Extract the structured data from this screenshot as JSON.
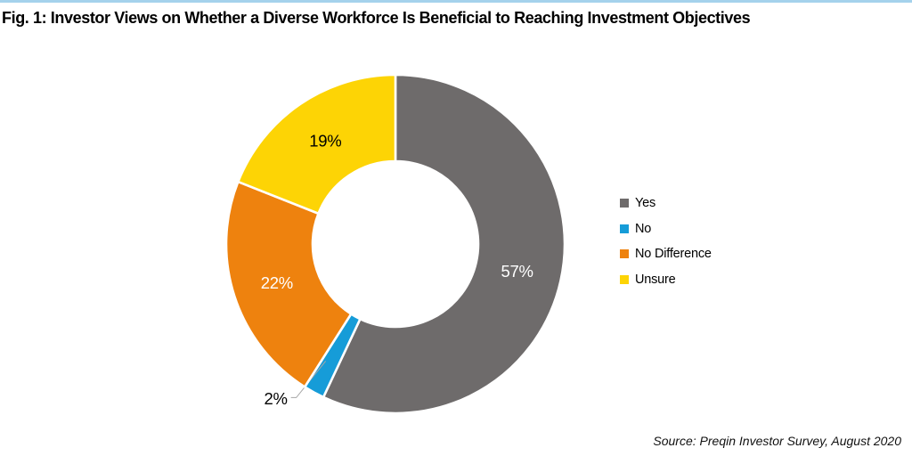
{
  "header": {
    "title": "Fig. 1: Investor Views on Whether a Diverse Workforce Is Beneficial to Reaching Investment Objectives"
  },
  "footer": {
    "source": "Source: Preqin Investor Survey, August 2020"
  },
  "colors": {
    "top_accent": "#a5d2ec",
    "leader_line": "#a6a6a6",
    "slice_border": "#ffffff"
  },
  "chart_data": {
    "type": "pie",
    "subtype": "donut",
    "title": "Fig. 1: Investor Views on Whether a Diverse Workforce Is Beneficial to Reaching Investment Objectives",
    "legend_position": "right",
    "start_angle_deg": 0,
    "direction": "clockwise",
    "slices": [
      {
        "label": "Yes",
        "value": 57,
        "display": "57%",
        "color": "#6e6b6b",
        "label_color": "#ffffff",
        "label_position": "inside"
      },
      {
        "label": "No",
        "value": 2,
        "display": "2%",
        "color": "#169cd8",
        "label_color": "#000000",
        "label_position": "outside"
      },
      {
        "label": "No Difference",
        "value": 22,
        "display": "22%",
        "color": "#ee820e",
        "label_color": "#ffffff",
        "label_position": "inside"
      },
      {
        "label": "Unsure",
        "value": 19,
        "display": "19%",
        "color": "#fdd405",
        "label_color": "#000000",
        "label_position": "inside"
      }
    ]
  }
}
